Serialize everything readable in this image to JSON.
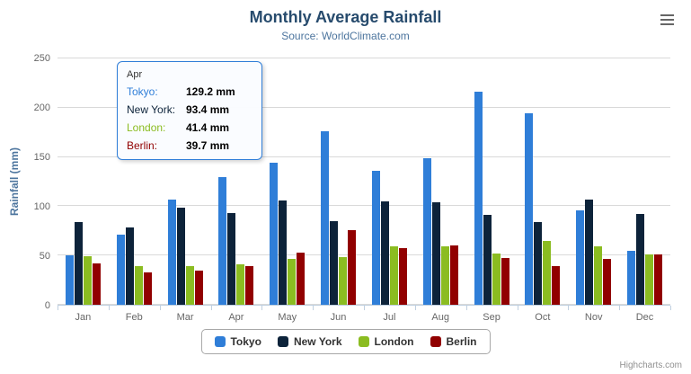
{
  "chart_data": {
    "type": "bar",
    "title": "Monthly Average Rainfall",
    "subtitle": "Source: WorldClimate.com",
    "xlabel": "",
    "ylabel": "Rainfall (mm)",
    "ylim": [
      0,
      250
    ],
    "yticks": [
      0,
      50,
      100,
      150,
      200,
      250
    ],
    "grid": true,
    "legend_position": "bottom",
    "categories": [
      "Jan",
      "Feb",
      "Mar",
      "Apr",
      "May",
      "Jun",
      "Jul",
      "Aug",
      "Sep",
      "Oct",
      "Nov",
      "Dec"
    ],
    "series": [
      {
        "name": "Tokyo",
        "color": "#2f7ed8",
        "values": [
          49.9,
          71.5,
          106.4,
          129.2,
          144.0,
          176.0,
          135.6,
          148.5,
          216.4,
          194.1,
          95.6,
          54.4
        ]
      },
      {
        "name": "New York",
        "color": "#0d233a",
        "values": [
          83.6,
          78.8,
          98.5,
          93.4,
          106.0,
          84.5,
          105.0,
          104.3,
          91.2,
          83.5,
          106.6,
          92.3
        ]
      },
      {
        "name": "London",
        "color": "#8bbc21",
        "values": [
          48.9,
          38.8,
          39.3,
          41.4,
          47.0,
          48.3,
          59.0,
          59.6,
          52.4,
          65.2,
          59.3,
          51.2
        ]
      },
      {
        "name": "Berlin",
        "color": "#910000",
        "values": [
          42.4,
          33.2,
          34.5,
          39.7,
          52.6,
          75.5,
          57.4,
          60.4,
          47.6,
          39.1,
          46.8,
          51.1
        ]
      }
    ]
  },
  "tooltip": {
    "category": "Apr",
    "rows": [
      {
        "series": "Tokyo",
        "label": "Tokyo:",
        "value": "129.2 mm"
      },
      {
        "series": "New York",
        "label": "New York:",
        "value": "93.4 mm"
      },
      {
        "series": "London",
        "label": "London:",
        "value": "41.4 mm"
      },
      {
        "series": "Berlin",
        "label": "Berlin:",
        "value": "39.7 mm"
      }
    ]
  },
  "credits": {
    "text": "Highcharts.com"
  }
}
